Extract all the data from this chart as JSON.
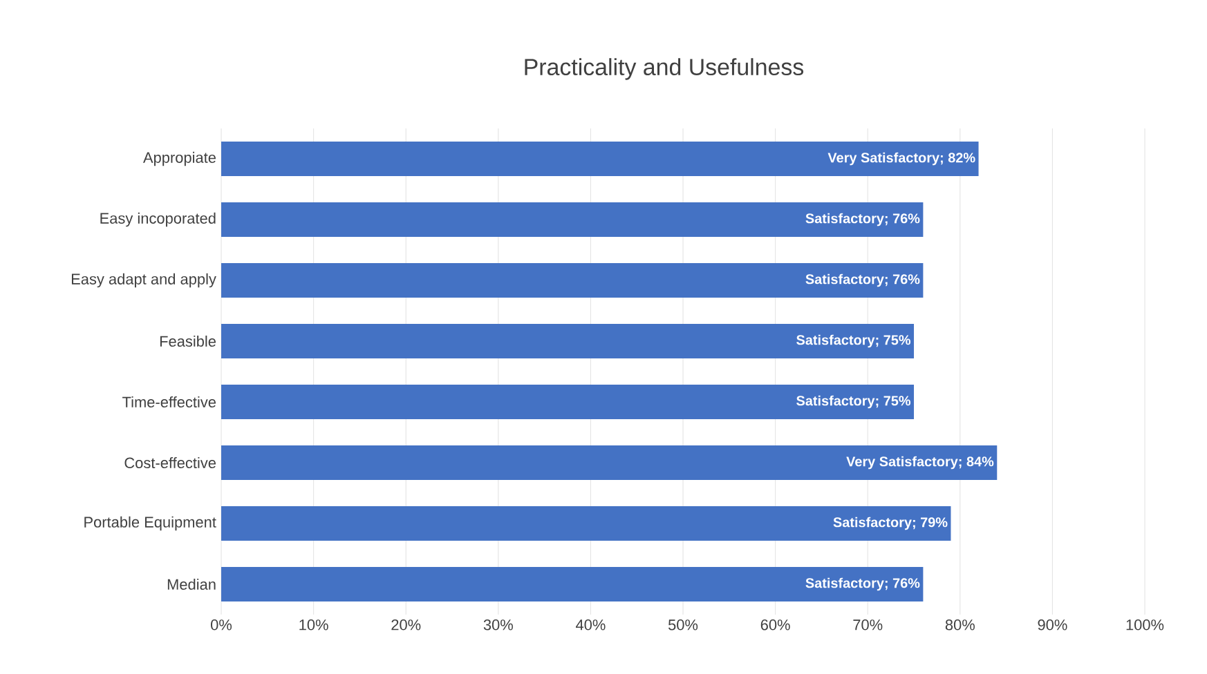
{
  "chart_data": {
    "type": "bar",
    "orientation": "horizontal",
    "title": "Practicality and Usefulness",
    "categories": [
      "Appropiate",
      "Easy incoporated",
      "Easy adapt and apply",
      "Feasible",
      "Time-effective",
      "Cost-effective",
      "Portable Equipment",
      "Median"
    ],
    "values": [
      82,
      76,
      76,
      75,
      75,
      84,
      79,
      76
    ],
    "value_labels": [
      "Very Satisfactory; 82%",
      "Satisfactory; 76%",
      "Satisfactory; 76%",
      "Satisfactory; 75%",
      "Satisfactory; 75%",
      "Very Satisfactory; 84%",
      "Satisfactory; 79%",
      "Satisfactory; 76%"
    ],
    "color": "#4472c4",
    "xlim": [
      0,
      100
    ],
    "xticks": [
      {
        "value": 0,
        "label": "0%"
      },
      {
        "value": 10,
        "label": "10%"
      },
      {
        "value": 20,
        "label": "20%"
      },
      {
        "value": 30,
        "label": "30%"
      },
      {
        "value": 40,
        "label": "40%"
      },
      {
        "value": 50,
        "label": "50%"
      },
      {
        "value": 60,
        "label": "60%"
      },
      {
        "value": 70,
        "label": "70%"
      },
      {
        "value": 80,
        "label": "80%"
      },
      {
        "value": 90,
        "label": "90%"
      },
      {
        "value": 100,
        "label": "100%"
      }
    ],
    "grid": "x"
  }
}
